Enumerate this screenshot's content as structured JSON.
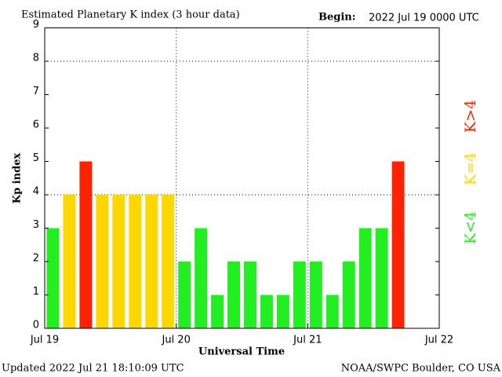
{
  "chart_data": {
    "type": "bar",
    "title": "Estimated Planetary K index (3 hour data)",
    "begin_label": "Begin:",
    "begin_value": "2022 Jul 19 0000 UTC",
    "ylabel": "Kp index",
    "xlabel": "Universal Time",
    "updated": "Updated 2022 Jul 21 18:10:09 UTC",
    "source": "NOAA/SWPC Boulder, CO USA",
    "x": [
      0,
      3,
      6,
      9,
      12,
      15,
      18,
      21,
      24,
      27,
      30,
      33,
      36,
      39,
      42,
      45,
      48,
      51,
      54,
      57,
      60,
      63
    ],
    "values": [
      3,
      4,
      5,
      4,
      4,
      4,
      4,
      4,
      2,
      3,
      1,
      2,
      2,
      1,
      1,
      2,
      2,
      1,
      2,
      3,
      3,
      5
    ],
    "colors": [
      "#22ee22",
      "#ffd700",
      "#ff2200",
      "#ffd700",
      "#ffd700",
      "#ffd700",
      "#ffd700",
      "#ffd700",
      "#22ee22",
      "#22ee22",
      "#22ee22",
      "#22ee22",
      "#22ee22",
      "#22ee22",
      "#22ee22",
      "#22ee22",
      "#22ee22",
      "#22ee22",
      "#22ee22",
      "#22ee22",
      "#22ee22",
      "#ff2200"
    ],
    "bar_width": 3,
    "xlim": [
      0,
      72
    ],
    "xticks": [
      {
        "value": 0,
        "label": "Jul 19"
      },
      {
        "value": 24,
        "label": "Jul 20"
      },
      {
        "value": 48,
        "label": "Jul 21"
      },
      {
        "value": 72,
        "label": "Jul 22"
      }
    ],
    "xgrid": [
      24,
      48
    ],
    "ylim": [
      0,
      9
    ],
    "yticks": [
      0,
      1,
      2,
      3,
      4,
      5,
      6,
      7,
      8,
      9
    ],
    "ygrid": [
      4,
      8
    ],
    "legend": [
      {
        "label": "K<4",
        "color": "#22ee22"
      },
      {
        "label": "K=4",
        "color": "#ffd700"
      },
      {
        "label": "K>4",
        "color": "#ff2200"
      }
    ]
  }
}
